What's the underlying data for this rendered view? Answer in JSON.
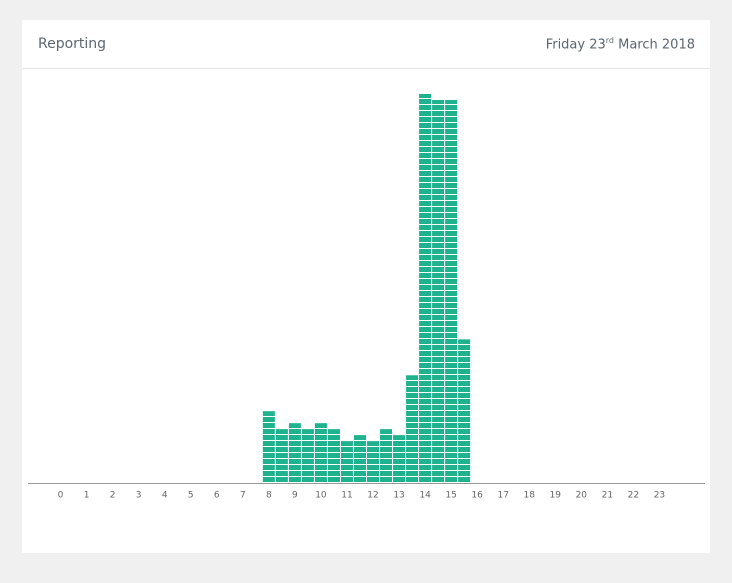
{
  "header": {
    "title": "Reporting",
    "date": {
      "day": "Friday 23",
      "ordinal": "rd",
      "month_year": "March 2018"
    }
  },
  "chart_data": {
    "type": "bar",
    "x": [
      8,
      8.5,
      9,
      9.5,
      10,
      10.5,
      11,
      11.5,
      12,
      12.5,
      13,
      13.5,
      14,
      14.5,
      15,
      15.5
    ],
    "values": [
      12,
      9,
      10,
      9,
      10,
      9,
      7,
      8,
      7,
      9,
      8,
      18,
      65,
      64,
      64,
      24
    ],
    "color": "#1fb28f",
    "xlim": [
      -1.25,
      24.75
    ],
    "xticks": [
      0,
      1,
      2,
      3,
      4,
      5,
      6,
      7,
      8,
      9,
      10,
      11,
      12,
      13,
      14,
      15,
      16,
      17,
      18,
      19,
      20,
      21,
      22,
      23
    ],
    "ylim": [
      0,
      65
    ]
  }
}
